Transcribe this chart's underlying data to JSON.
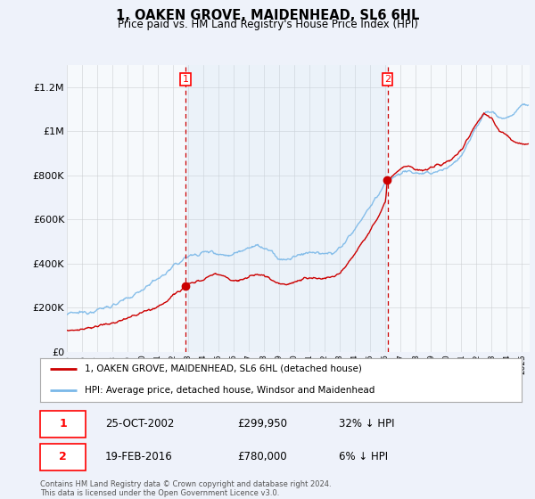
{
  "title": "1, OAKEN GROVE, MAIDENHEAD, SL6 6HL",
  "subtitle": "Price paid vs. HM Land Registry's House Price Index (HPI)",
  "ylabel_ticks": [
    "£0",
    "£200K",
    "£400K",
    "£600K",
    "£800K",
    "£1M",
    "£1.2M"
  ],
  "ytick_vals": [
    0,
    200000,
    400000,
    600000,
    800000,
    1000000,
    1200000
  ],
  "ylim": [
    0,
    1300000
  ],
  "xlim_start": 1995.0,
  "xlim_end": 2025.5,
  "hpi_color": "#7ab8e8",
  "price_color": "#cc0000",
  "sale1_year": 2002.82,
  "sale1_price": 299950,
  "sale2_year": 2016.13,
  "sale2_price": 780000,
  "legend_label1": "1, OAKEN GROVE, MAIDENHEAD, SL6 6HL (detached house)",
  "legend_label2": "HPI: Average price, detached house, Windsor and Maidenhead",
  "footnote": "Contains HM Land Registry data © Crown copyright and database right 2024.\nThis data is licensed under the Open Government Licence v3.0.",
  "bg_color": "#eef2fa",
  "plot_bg": "#ffffff",
  "shade_mid_color": "#daeaf8",
  "grid_color": "#cccccc",
  "hpi_anchors": [
    [
      1995.0,
      170000
    ],
    [
      1995.5,
      175000
    ],
    [
      1996.0,
      178000
    ],
    [
      1996.5,
      182000
    ],
    [
      1997.0,
      190000
    ],
    [
      1997.5,
      200000
    ],
    [
      1998.0,
      210000
    ],
    [
      1998.5,
      225000
    ],
    [
      1999.0,
      240000
    ],
    [
      1999.5,
      260000
    ],
    [
      2000.0,
      285000
    ],
    [
      2000.5,
      310000
    ],
    [
      2001.0,
      330000
    ],
    [
      2001.5,
      355000
    ],
    [
      2002.0,
      385000
    ],
    [
      2002.5,
      410000
    ],
    [
      2003.0,
      435000
    ],
    [
      2003.5,
      440000
    ],
    [
      2004.0,
      450000
    ],
    [
      2004.5,
      455000
    ],
    [
      2005.0,
      445000
    ],
    [
      2005.5,
      435000
    ],
    [
      2006.0,
      445000
    ],
    [
      2006.5,
      460000
    ],
    [
      2007.0,
      475000
    ],
    [
      2007.5,
      480000
    ],
    [
      2008.0,
      470000
    ],
    [
      2008.5,
      450000
    ],
    [
      2009.0,
      420000
    ],
    [
      2009.5,
      415000
    ],
    [
      2010.0,
      430000
    ],
    [
      2010.5,
      445000
    ],
    [
      2011.0,
      450000
    ],
    [
      2011.5,
      445000
    ],
    [
      2012.0,
      440000
    ],
    [
      2012.5,
      450000
    ],
    [
      2013.0,
      470000
    ],
    [
      2013.5,
      510000
    ],
    [
      2014.0,
      560000
    ],
    [
      2014.5,
      610000
    ],
    [
      2015.0,
      660000
    ],
    [
      2015.5,
      710000
    ],
    [
      2016.0,
      760000
    ],
    [
      2016.5,
      790000
    ],
    [
      2017.0,
      810000
    ],
    [
      2017.5,
      820000
    ],
    [
      2018.0,
      810000
    ],
    [
      2018.5,
      805000
    ],
    [
      2019.0,
      810000
    ],
    [
      2019.5,
      820000
    ],
    [
      2020.0,
      830000
    ],
    [
      2020.5,
      855000
    ],
    [
      2021.0,
      890000
    ],
    [
      2021.5,
      950000
    ],
    [
      2022.0,
      1020000
    ],
    [
      2022.5,
      1080000
    ],
    [
      2023.0,
      1090000
    ],
    [
      2023.5,
      1060000
    ],
    [
      2024.0,
      1060000
    ],
    [
      2024.5,
      1080000
    ],
    [
      2025.0,
      1120000
    ]
  ],
  "price_anchors": [
    [
      1995.0,
      95000
    ],
    [
      1995.5,
      98000
    ],
    [
      1996.0,
      102000
    ],
    [
      1996.5,
      108000
    ],
    [
      1997.0,
      115000
    ],
    [
      1997.5,
      122000
    ],
    [
      1998.0,
      130000
    ],
    [
      1998.5,
      140000
    ],
    [
      1999.0,
      152000
    ],
    [
      1999.5,
      165000
    ],
    [
      2000.0,
      178000
    ],
    [
      2000.5,
      192000
    ],
    [
      2001.0,
      205000
    ],
    [
      2001.5,
      225000
    ],
    [
      2002.0,
      255000
    ],
    [
      2002.5,
      280000
    ],
    [
      2002.82,
      299950
    ],
    [
      2003.0,
      305000
    ],
    [
      2003.5,
      315000
    ],
    [
      2004.0,
      330000
    ],
    [
      2004.5,
      345000
    ],
    [
      2005.0,
      355000
    ],
    [
      2005.5,
      340000
    ],
    [
      2006.0,
      320000
    ],
    [
      2006.5,
      325000
    ],
    [
      2007.0,
      340000
    ],
    [
      2007.5,
      350000
    ],
    [
      2008.0,
      345000
    ],
    [
      2008.5,
      330000
    ],
    [
      2009.0,
      310000
    ],
    [
      2009.5,
      305000
    ],
    [
      2010.0,
      315000
    ],
    [
      2010.5,
      330000
    ],
    [
      2011.0,
      335000
    ],
    [
      2011.5,
      330000
    ],
    [
      2012.0,
      330000
    ],
    [
      2012.5,
      340000
    ],
    [
      2013.0,
      360000
    ],
    [
      2013.5,
      400000
    ],
    [
      2014.0,
      450000
    ],
    [
      2014.5,
      500000
    ],
    [
      2015.0,
      550000
    ],
    [
      2015.5,
      610000
    ],
    [
      2016.0,
      680000
    ],
    [
      2016.13,
      780000
    ],
    [
      2016.5,
      800000
    ],
    [
      2017.0,
      830000
    ],
    [
      2017.5,
      840000
    ],
    [
      2018.0,
      825000
    ],
    [
      2018.5,
      820000
    ],
    [
      2019.0,
      830000
    ],
    [
      2019.5,
      845000
    ],
    [
      2020.0,
      860000
    ],
    [
      2020.5,
      880000
    ],
    [
      2021.0,
      915000
    ],
    [
      2021.5,
      975000
    ],
    [
      2022.0,
      1035000
    ],
    [
      2022.5,
      1080000
    ],
    [
      2023.0,
      1060000
    ],
    [
      2023.5,
      1000000
    ],
    [
      2024.0,
      980000
    ],
    [
      2024.5,
      950000
    ],
    [
      2025.0,
      940000
    ]
  ]
}
